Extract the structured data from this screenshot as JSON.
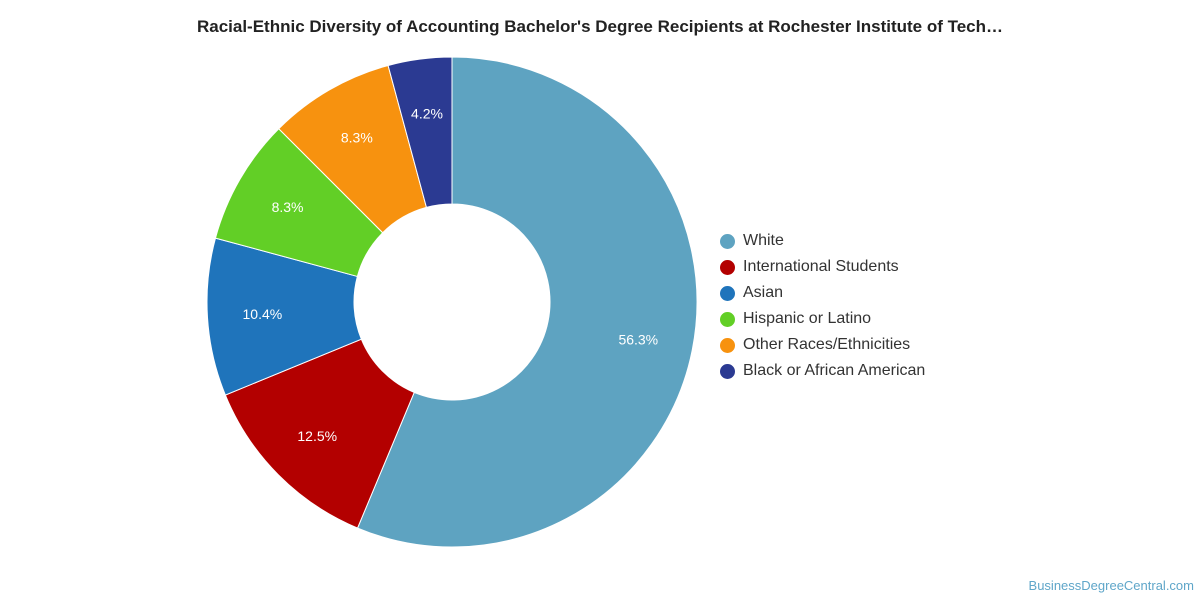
{
  "chart_data": {
    "type": "pie",
    "title": "Racial-Ethnic Diversity of Accounting Bachelor's Degree Recipients at Rochester Institute of Tech…",
    "categories": [
      "White",
      "International Students",
      "Asian",
      "Hispanic or Latino",
      "Other Races/Ethnicities",
      "Black or African American"
    ],
    "values": [
      56.3,
      12.5,
      10.4,
      8.3,
      8.3,
      4.2
    ],
    "labels": [
      "56.3%",
      "12.5%",
      "10.4%",
      "8.3%",
      "8.3%",
      "4.2%"
    ],
    "colors": [
      "#5ea3c1",
      "#b30000",
      "#1f74bb",
      "#62cf26",
      "#f7920f",
      "#2b3a92"
    ],
    "legend_position": "right"
  },
  "watermark": "BusinessDegreeCentral.com"
}
